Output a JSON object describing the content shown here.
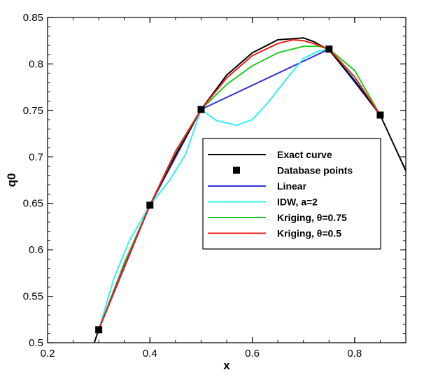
{
  "chart_data": {
    "type": "line",
    "title": "",
    "xlabel": "x",
    "ylabel": "q0",
    "xlim": [
      0.2,
      0.9
    ],
    "ylim": [
      0.5,
      0.85
    ],
    "xticks": [
      0.2,
      0.4,
      0.6,
      0.8
    ],
    "xtick_labels": [
      "0.2",
      "0.4",
      "0.6",
      "0.8"
    ],
    "yticks": [
      0.5,
      0.55,
      0.6,
      0.65,
      0.7,
      0.75,
      0.8,
      0.85
    ],
    "ytick_labels": [
      "0.5",
      "0.55",
      "0.6",
      "0.65",
      "0.7",
      "0.75",
      "0.8",
      "0.85"
    ],
    "grid": false,
    "legend_position": "center-right",
    "series": [
      {
        "name": "Exact curve",
        "color": "#000000",
        "kind": "line",
        "x": [
          0.29,
          0.3,
          0.35,
          0.4,
          0.45,
          0.5,
          0.55,
          0.6,
          0.65,
          0.7,
          0.72,
          0.75,
          0.8,
          0.85,
          0.9
        ],
        "y": [
          0.498,
          0.514,
          0.584,
          0.648,
          0.702,
          0.751,
          0.788,
          0.812,
          0.826,
          0.828,
          0.824,
          0.815,
          0.782,
          0.745,
          0.685
        ]
      },
      {
        "name": "Database points",
        "color": "#000000",
        "kind": "marker",
        "x": [
          0.3,
          0.4,
          0.5,
          0.75,
          0.85
        ],
        "y": [
          0.514,
          0.648,
          0.751,
          0.816,
          0.745
        ]
      },
      {
        "name": "Linear",
        "color": "#3333dd",
        "kind": "line",
        "x": [
          0.3,
          0.4,
          0.5,
          0.75,
          0.85
        ],
        "y": [
          0.514,
          0.648,
          0.751,
          0.816,
          0.745
        ]
      },
      {
        "name": "IDW, a=2",
        "color": "#33f0f0",
        "kind": "line",
        "x": [
          0.3,
          0.33,
          0.36,
          0.4,
          0.44,
          0.47,
          0.5,
          0.53,
          0.57,
          0.6,
          0.63,
          0.67,
          0.7,
          0.73,
          0.75,
          0.78,
          0.82,
          0.85
        ],
        "y": [
          0.514,
          0.57,
          0.61,
          0.648,
          0.676,
          0.703,
          0.751,
          0.739,
          0.734,
          0.74,
          0.758,
          0.786,
          0.806,
          0.814,
          0.816,
          0.797,
          0.768,
          0.745
        ]
      },
      {
        "name": "Kriging, θ=0.75",
        "color": "#22cc22",
        "kind": "line",
        "x": [
          0.3,
          0.35,
          0.4,
          0.45,
          0.5,
          0.55,
          0.6,
          0.65,
          0.7,
          0.73,
          0.75,
          0.8,
          0.85
        ],
        "y": [
          0.514,
          0.586,
          0.648,
          0.705,
          0.751,
          0.778,
          0.798,
          0.812,
          0.819,
          0.819,
          0.816,
          0.793,
          0.745
        ]
      },
      {
        "name": "Kriging, θ=0.5",
        "color": "#ee1c1c",
        "kind": "line",
        "x": [
          0.3,
          0.35,
          0.4,
          0.45,
          0.5,
          0.55,
          0.6,
          0.65,
          0.68,
          0.7,
          0.72,
          0.75,
          0.8,
          0.85
        ],
        "y": [
          0.514,
          0.583,
          0.648,
          0.706,
          0.751,
          0.785,
          0.809,
          0.822,
          0.826,
          0.825,
          0.822,
          0.816,
          0.786,
          0.745
        ]
      }
    ]
  }
}
